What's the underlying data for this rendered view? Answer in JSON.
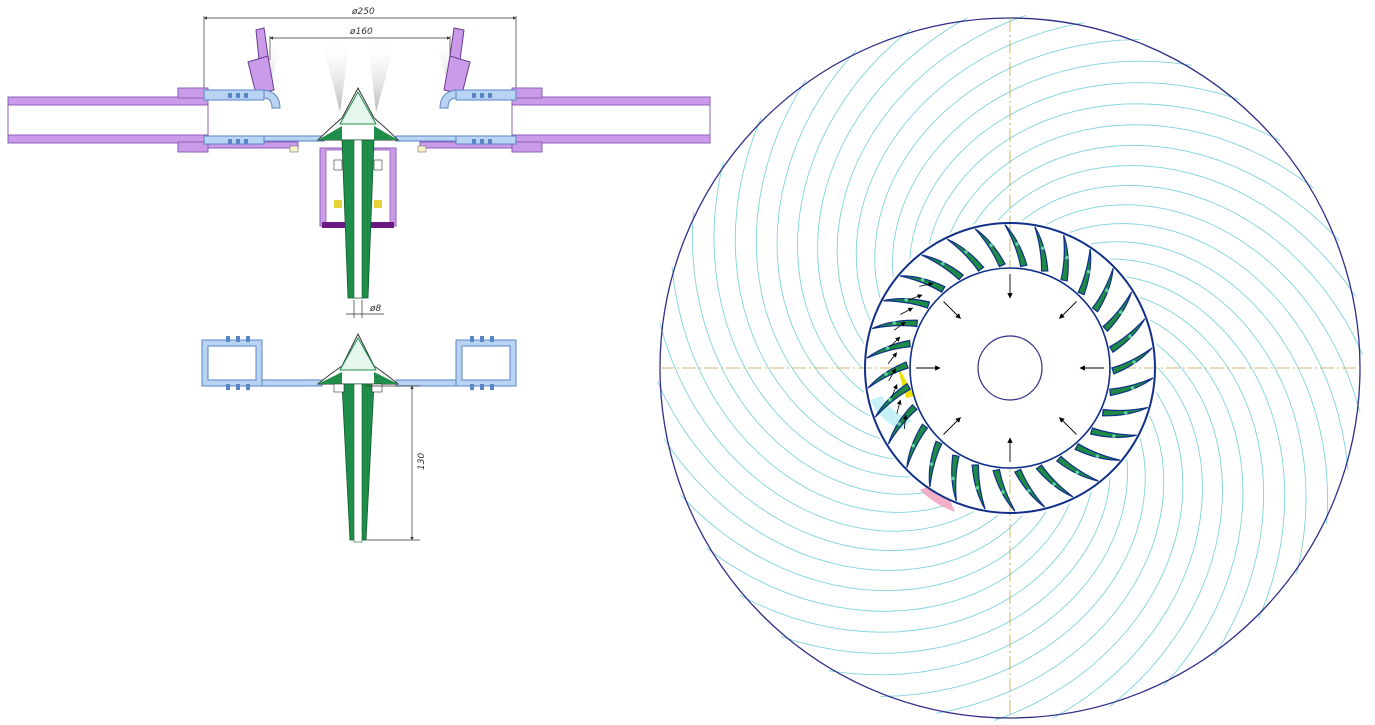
{
  "drawing": {
    "section_views": {
      "dimensions": {
        "outer_diameter": "ø250",
        "inner_diameter": "ø160",
        "shaft_diameter": "ø8",
        "shaft_length": "130"
      }
    },
    "impeller_plan_view": {
      "blade_count": 30
    }
  },
  "colors": {
    "casing": "#c99be8",
    "casing_edge": "#8e5fb8",
    "liner": "#b9d3f2",
    "liner_edge": "#5a86c6",
    "shaft": "#1f8e4a",
    "shaft_light": "#6fd08e",
    "bearing": "#e8d23a",
    "seal": "#6a1a80",
    "stream": "#7fd3dd",
    "outline": "#2f2f8a",
    "centerline": "#c9a24a",
    "blade": "#1e8a46",
    "blade_edge": "#0f2f88",
    "highlight_yellow": "#f0e000",
    "highlight_pink": "#f2a7c2",
    "highlight_cyan": "#bff0f5",
    "spray": "#9a9a9a"
  },
  "icons": {
    "force_arrow": "arrow-icon"
  }
}
